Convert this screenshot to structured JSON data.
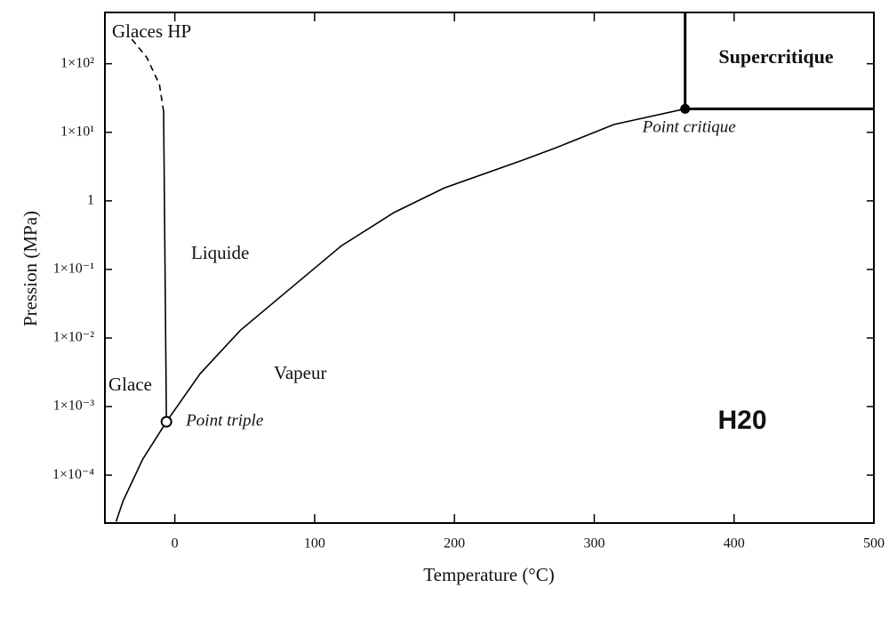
{
  "chart_data": {
    "type": "line",
    "x_label": "Temperature (°C)",
    "y_label": "Pression (MPa)",
    "xlim": [
      -50,
      500
    ],
    "xticks": [
      0,
      100,
      200,
      300,
      400,
      500
    ],
    "ylim": [
      2e-05,
      560
    ],
    "ylog": true,
    "yticks": [
      {
        "value": 0.0001,
        "label": "1×10⁻⁴"
      },
      {
        "value": 0.001,
        "label": "1×10⁻³"
      },
      {
        "value": 0.01,
        "label": "1×10⁻²"
      },
      {
        "value": 0.1,
        "label": "1×10⁻¹"
      },
      1,
      {
        "value": 10,
        "label": "1×10¹"
      },
      {
        "value": 100,
        "label": "1×10²"
      }
    ],
    "grid": false,
    "series": [
      {
        "color": "#000000",
        "style": "solid",
        "x": [
          -6,
          18,
          47,
          119,
          157,
          193,
          250,
          273,
          314,
          365
        ],
        "values": [
          0.0006,
          0.003,
          0.013,
          0.22,
          0.68,
          1.55,
          4,
          6,
          13,
          22
        ]
      },
      {
        "color": "#000000",
        "style": "solid",
        "x": [
          -42,
          -37,
          -23,
          -6
        ],
        "values": [
          2.1e-05,
          4.2e-05,
          0.00017,
          0.0006
        ]
      },
      {
        "color": "#000000",
        "style": "solid",
        "x": [
          -6,
          -8
        ],
        "values": [
          0.0006,
          20
        ]
      },
      {
        "color": "#000000",
        "style": "dashed",
        "x": [
          -8,
          -11,
          -20,
          -32
        ],
        "values": [
          20,
          50,
          123,
          245
        ]
      }
    ],
    "points": [
      {
        "label": "Point triple",
        "x": -6,
        "y": 0.0006,
        "filled": false
      },
      {
        "label": "Point critique",
        "x": 365,
        "y": 22,
        "filled": true
      }
    ],
    "annotations": [
      "Glaces HP",
      "Liquide",
      "Glace",
      "Vapeur",
      "Supercritique",
      "H20"
    ]
  }
}
